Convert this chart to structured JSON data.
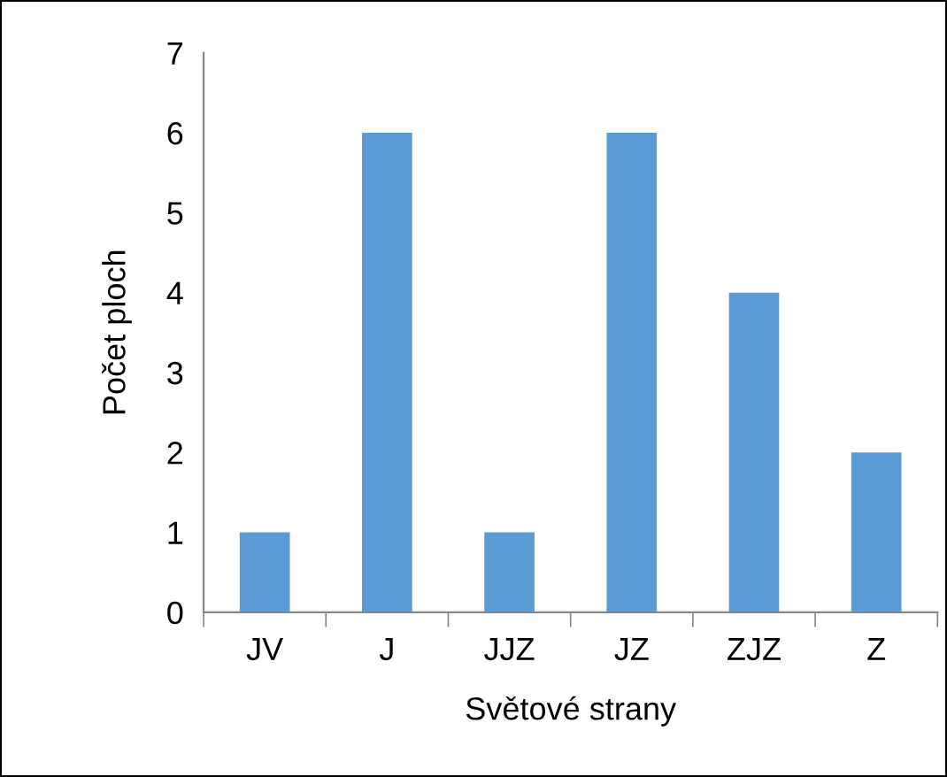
{
  "chart_data": {
    "type": "bar",
    "xlabel": "Světové strany",
    "ylabel": "Počet ploch",
    "categories": [
      "JV",
      "J",
      "JJZ",
      "JZ",
      "ZJZ",
      "Z"
    ],
    "values": [
      1,
      6,
      1,
      6,
      4,
      2
    ],
    "color": "#5b9bd5",
    "ylim": [
      0,
      7
    ],
    "yticks": [
      0,
      1,
      2,
      3,
      4,
      5,
      6,
      7
    ],
    "grid": false
  }
}
